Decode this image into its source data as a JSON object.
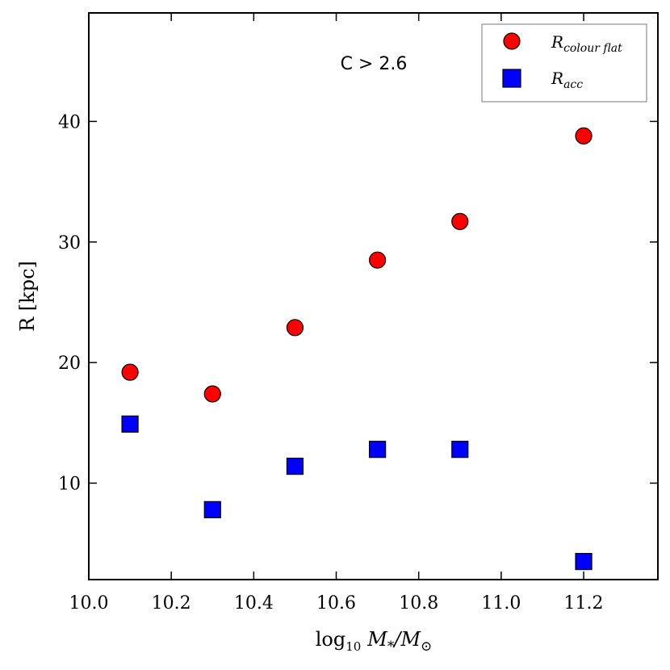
{
  "chart_data": {
    "type": "scatter",
    "xlabel_base": "log",
    "xlabel_sub": "10",
    "xlabel_var": "M",
    "xlabel_var_sub": "*",
    "xlabel_sep": "/M",
    "xlabel_sep_sub": "⊙",
    "ylabel": "R [kpc]",
    "annotation": "C > 2.6",
    "xlim": [
      10.0,
      11.38
    ],
    "ylim": [
      2.0,
      49.0
    ],
    "xticks": [
      "10.0",
      "10.2",
      "10.4",
      "10.6",
      "10.8",
      "11.0",
      "11.2"
    ],
    "xtick_values": [
      10.0,
      10.2,
      10.4,
      10.6,
      10.8,
      11.0,
      11.2
    ],
    "yticks": [
      "10",
      "20",
      "30",
      "40"
    ],
    "ytick_values": [
      10,
      20,
      30,
      40
    ],
    "grid": false,
    "legend_position": "top-right",
    "series": [
      {
        "name_main": "R",
        "name_sub": "colour flat",
        "marker": "circle",
        "color": "#ff0000",
        "x": [
          10.1,
          10.3,
          10.5,
          10.7,
          10.9,
          11.2
        ],
        "y": [
          19.2,
          17.4,
          22.9,
          28.5,
          31.7,
          38.8
        ]
      },
      {
        "name_main": "R",
        "name_sub": "acc",
        "marker": "square",
        "color": "#0000ff",
        "x": [
          10.1,
          10.3,
          10.5,
          10.7,
          10.9,
          11.2
        ],
        "y": [
          14.9,
          7.8,
          11.4,
          12.8,
          12.8,
          3.5
        ]
      }
    ]
  }
}
